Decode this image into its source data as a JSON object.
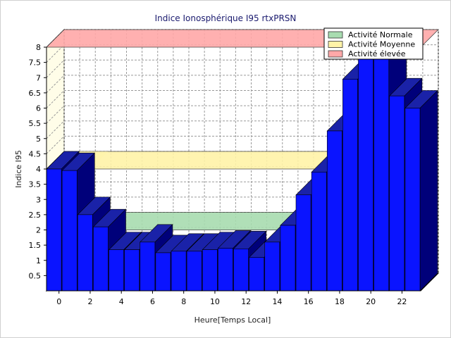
{
  "chart_data": {
    "type": "bar",
    "title": "Indice Ionosphérique I95 rtxPRSN",
    "xlabel": "Heure[Temps Local]",
    "ylabel": "Indice I95",
    "ylim": [
      0,
      8
    ],
    "y_ticks": [
      "0.5",
      "1",
      "1.5",
      "2",
      "2.5",
      "3",
      "3.5",
      "4",
      "4.5",
      "5",
      "5.5",
      "6",
      "6.5",
      "7",
      "7.5",
      "8"
    ],
    "x_ticks": [
      "0",
      "2",
      "4",
      "6",
      "8",
      "10",
      "12",
      "14",
      "16",
      "18",
      "20",
      "22"
    ],
    "grid": true,
    "legend_position": "top-right",
    "x": [
      0,
      1,
      2,
      3,
      4,
      5,
      6,
      7,
      8,
      9,
      10,
      11,
      12,
      13,
      14,
      15,
      16,
      17,
      18,
      19,
      20,
      21,
      22,
      23
    ],
    "values": [
      4.0,
      3.95,
      2.5,
      2.1,
      1.35,
      1.35,
      1.6,
      1.25,
      1.3,
      1.3,
      1.35,
      1.4,
      1.38,
      1.1,
      1.6,
      2.15,
      3.15,
      3.9,
      5.25,
      6.95,
      7.75,
      7.75,
      6.4,
      6.0
    ],
    "bar_color": "#0a14ff",
    "bands": [
      {
        "name": "Activité Normale",
        "from": 0,
        "to": 2,
        "color": "#a8dcb0"
      },
      {
        "name": "Activité Moyenne",
        "from": 2,
        "to": 4,
        "color": "#fff3a8"
      },
      {
        "name": "Activité élevée",
        "from": 4,
        "to": 8,
        "color": "#ffa8a8"
      }
    ]
  }
}
